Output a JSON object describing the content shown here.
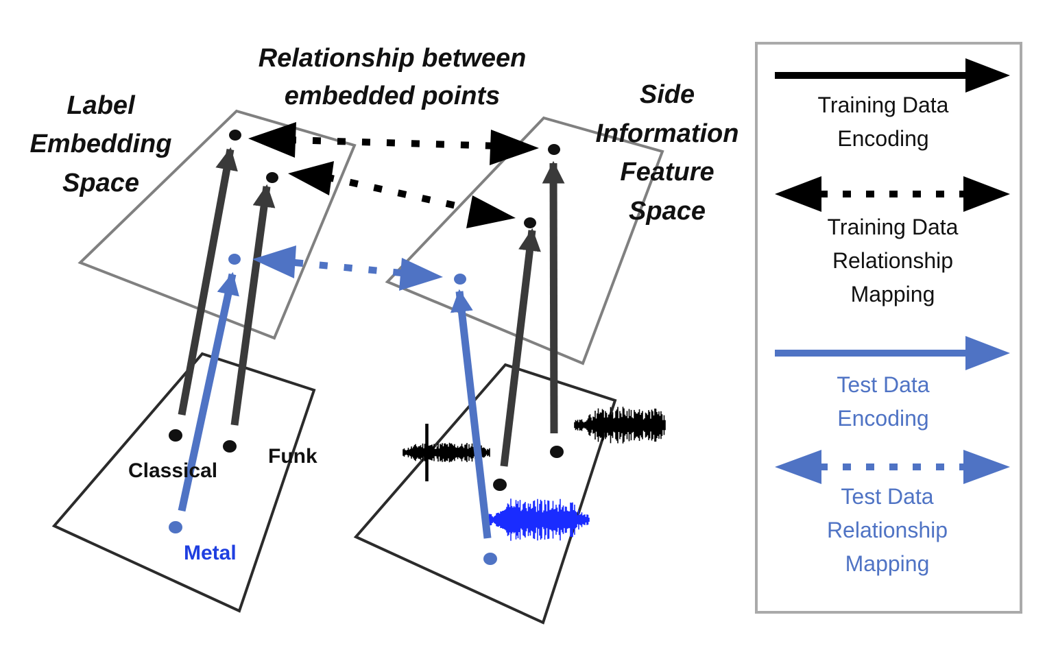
{
  "titles": {
    "label_space": [
      "Label",
      "Embedding",
      "Space"
    ],
    "relationship": [
      "Relationship between",
      "embedded points"
    ],
    "side_info_space": [
      "Side",
      "Information",
      "Feature",
      "Space"
    ]
  },
  "genres": {
    "classical": "Classical",
    "funk": "Funk",
    "metal": "Metal"
  },
  "legend": {
    "training_encoding": [
      "Training Data",
      "Encoding"
    ],
    "training_relationship": [
      "Training Data",
      "Relationship",
      "Mapping"
    ],
    "test_encoding": [
      "Test Data",
      "Encoding"
    ],
    "test_relationship": [
      "Test Data",
      "Relationship",
      "Mapping"
    ]
  },
  "colors": {
    "training": "#000000",
    "training_arrow": "#3a3a3a",
    "test": "#4f73c4",
    "metal_label": "#1f3fe0",
    "audio_test": "#1a2cff",
    "plane_upper": "#808080",
    "plane_lower": "#2b2b2b",
    "legend_border": "#aaaaaa"
  }
}
